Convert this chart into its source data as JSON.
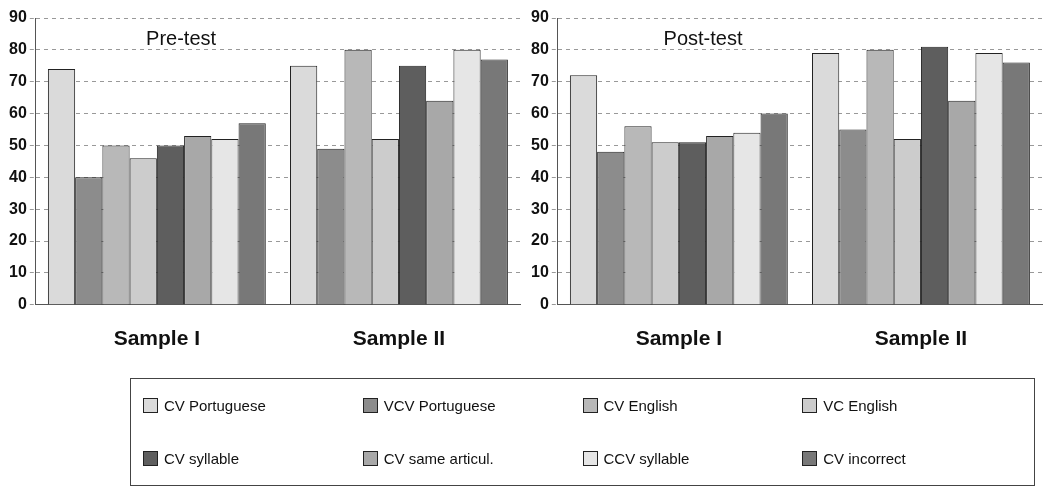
{
  "chart_data": [
    {
      "type": "bar",
      "title": "Pre-test",
      "categories": [
        "Sample I",
        "Sample II"
      ],
      "ylim": [
        0,
        90
      ],
      "yticks": [
        0,
        10,
        20,
        30,
        40,
        50,
        60,
        70,
        80,
        90
      ],
      "grid": "y",
      "legend": "bottom",
      "series": [
        {
          "name": "CV Portuguese",
          "color": "#dadada",
          "values": [
            74,
            75
          ]
        },
        {
          "name": "VCV Portuguese",
          "color": "#8c8c8c",
          "values": [
            40,
            49
          ]
        },
        {
          "name": "CV English",
          "color": "#b8b8b8",
          "values": [
            50,
            80
          ]
        },
        {
          "name": "VC English",
          "color": "#cccccc",
          "values": [
            46,
            52
          ]
        },
        {
          "name": "CV syllable",
          "color": "#5e5e5e",
          "values": [
            50,
            75
          ]
        },
        {
          "name": "CV same articul.",
          "color": "#a8a8a8",
          "values": [
            53,
            64
          ]
        },
        {
          "name": "CCV syllable",
          "color": "#e6e6e6",
          "values": [
            52,
            80
          ]
        },
        {
          "name": "CV incorrect",
          "color": "#787878",
          "values": [
            57,
            77
          ]
        }
      ]
    },
    {
      "type": "bar",
      "title": "Post-test",
      "categories": [
        "Sample I",
        "Sample II"
      ],
      "ylim": [
        0,
        90
      ],
      "yticks": [
        0,
        10,
        20,
        30,
        40,
        50,
        60,
        70,
        80,
        90
      ],
      "grid": "y",
      "series": [
        {
          "color": "#dadada",
          "values": [
            72,
            79
          ]
        },
        {
          "color": "#8c8c8c",
          "values": [
            48,
            55
          ]
        },
        {
          "color": "#b8b8b8",
          "values": [
            56,
            80
          ]
        },
        {
          "color": "#cccccc",
          "values": [
            51,
            52
          ]
        },
        {
          "color": "#5e5e5e",
          "values": [
            51,
            81
          ]
        },
        {
          "color": "#a8a8a8",
          "values": [
            53,
            64
          ]
        },
        {
          "color": "#e6e6e6",
          "values": [
            54,
            79
          ]
        },
        {
          "color": "#787878",
          "values": [
            60,
            76
          ]
        }
      ]
    }
  ]
}
